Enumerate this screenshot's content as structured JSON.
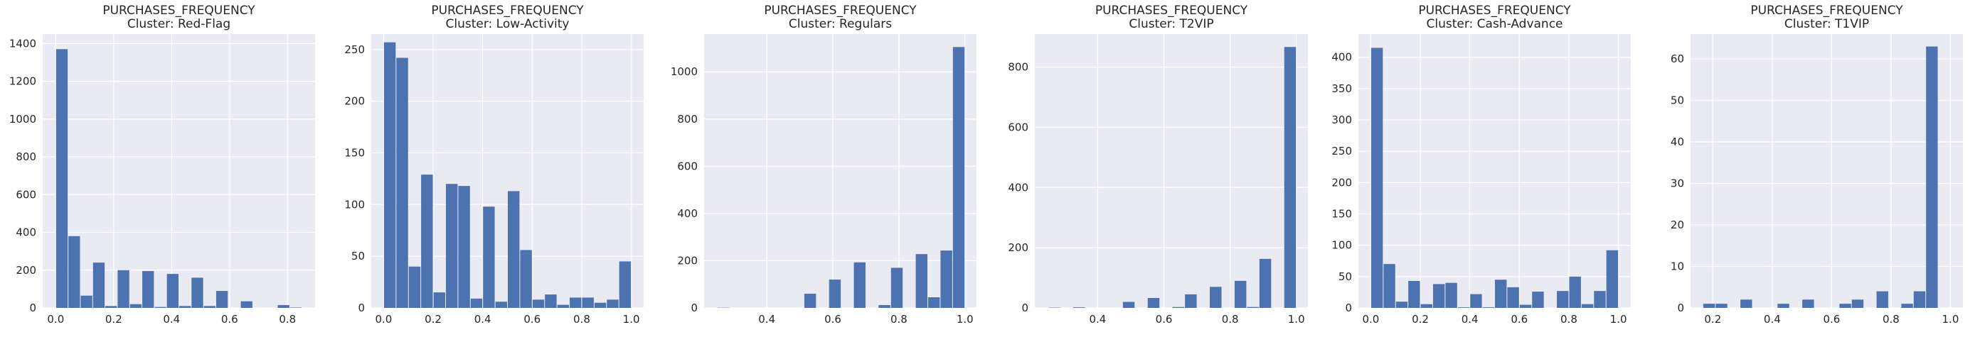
{
  "chart_data": [
    {
      "type": "bar",
      "title": "PURCHASES_FREQUENCY",
      "subtitle": "Cluster: Red-Flag",
      "bar_color": "#4c72b0",
      "xlim": [
        -0.045,
        0.895
      ],
      "ylim": [
        0,
        1450
      ],
      "xticks": [
        0.0,
        0.2,
        0.4,
        0.6,
        0.8
      ],
      "xtick_labels": [
        "0.0",
        "0.2",
        "0.4",
        "0.6",
        "0.8"
      ],
      "yticks": [
        0,
        200,
        400,
        600,
        800,
        1000,
        1200,
        1400
      ],
      "ytick_labels": [
        "0",
        "200",
        "400",
        "600",
        "800",
        "1000",
        "1200",
        "1400"
      ],
      "bins": [
        {
          "x0": 0.0,
          "x1": 0.0425,
          "count": 1370
        },
        {
          "x0": 0.0425,
          "x1": 0.085,
          "count": 380
        },
        {
          "x0": 0.085,
          "x1": 0.1275,
          "count": 65
        },
        {
          "x0": 0.1275,
          "x1": 0.17,
          "count": 240
        },
        {
          "x0": 0.17,
          "x1": 0.2125,
          "count": 10
        },
        {
          "x0": 0.2125,
          "x1": 0.255,
          "count": 200
        },
        {
          "x0": 0.255,
          "x1": 0.2975,
          "count": 20
        },
        {
          "x0": 0.2975,
          "x1": 0.34,
          "count": 195
        },
        {
          "x0": 0.34,
          "x1": 0.3825,
          "count": 5
        },
        {
          "x0": 0.3825,
          "x1": 0.425,
          "count": 180
        },
        {
          "x0": 0.425,
          "x1": 0.4675,
          "count": 10
        },
        {
          "x0": 0.4675,
          "x1": 0.51,
          "count": 160
        },
        {
          "x0": 0.51,
          "x1": 0.5525,
          "count": 10
        },
        {
          "x0": 0.5525,
          "x1": 0.595,
          "count": 90
        },
        {
          "x0": 0.595,
          "x1": 0.6375,
          "count": 0
        },
        {
          "x0": 0.6375,
          "x1": 0.68,
          "count": 35
        },
        {
          "x0": 0.68,
          "x1": 0.7225,
          "count": 0
        },
        {
          "x0": 0.7225,
          "x1": 0.765,
          "count": 0
        },
        {
          "x0": 0.765,
          "x1": 0.8075,
          "count": 15
        },
        {
          "x0": 0.8075,
          "x1": 0.85,
          "count": 2
        }
      ]
    },
    {
      "type": "bar",
      "title": "PURCHASES_FREQUENCY",
      "subtitle": "Cluster: Low-Activity",
      "bar_color": "#4c72b0",
      "xlim": [
        -0.05,
        1.05
      ],
      "ylim": [
        0,
        265
      ],
      "xticks": [
        0.0,
        0.2,
        0.4,
        0.6,
        0.8,
        1.0
      ],
      "xtick_labels": [
        "0.0",
        "0.2",
        "0.4",
        "0.6",
        "0.8",
        "1.0"
      ],
      "yticks": [
        0,
        50,
        100,
        150,
        200,
        250
      ],
      "ytick_labels": [
        "0",
        "50",
        "100",
        "150",
        "200",
        "250"
      ],
      "bins": [
        {
          "x0": 0.0,
          "x1": 0.05,
          "count": 257
        },
        {
          "x0": 0.05,
          "x1": 0.1,
          "count": 242
        },
        {
          "x0": 0.1,
          "x1": 0.15,
          "count": 40
        },
        {
          "x0": 0.15,
          "x1": 0.2,
          "count": 129
        },
        {
          "x0": 0.2,
          "x1": 0.25,
          "count": 15
        },
        {
          "x0": 0.25,
          "x1": 0.3,
          "count": 120
        },
        {
          "x0": 0.3,
          "x1": 0.35,
          "count": 118
        },
        {
          "x0": 0.35,
          "x1": 0.4,
          "count": 9
        },
        {
          "x0": 0.4,
          "x1": 0.45,
          "count": 98
        },
        {
          "x0": 0.45,
          "x1": 0.5,
          "count": 6
        },
        {
          "x0": 0.5,
          "x1": 0.55,
          "count": 113
        },
        {
          "x0": 0.55,
          "x1": 0.6,
          "count": 56
        },
        {
          "x0": 0.6,
          "x1": 0.65,
          "count": 8
        },
        {
          "x0": 0.65,
          "x1": 0.7,
          "count": 13
        },
        {
          "x0": 0.7,
          "x1": 0.75,
          "count": 3
        },
        {
          "x0": 0.75,
          "x1": 0.8,
          "count": 10
        },
        {
          "x0": 0.8,
          "x1": 0.85,
          "count": 10
        },
        {
          "x0": 0.85,
          "x1": 0.9,
          "count": 5
        },
        {
          "x0": 0.9,
          "x1": 0.95,
          "count": 8
        },
        {
          "x0": 0.95,
          "x1": 1.0,
          "count": 45
        }
      ]
    },
    {
      "type": "bar",
      "title": "PURCHASES_FREQUENCY",
      "subtitle": "Cluster: Regulars",
      "bar_color": "#4c72b0",
      "xlim": [
        0.21,
        1.035
      ],
      "ylim": [
        0,
        1160
      ],
      "xticks": [
        0.4,
        0.6,
        0.8,
        1.0
      ],
      "xtick_labels": [
        "0.4",
        "0.6",
        "0.8",
        "1.0"
      ],
      "yticks": [
        0,
        200,
        400,
        600,
        800,
        1000
      ],
      "ytick_labels": [
        "0",
        "200",
        "400",
        "600",
        "800",
        "1000"
      ],
      "bins": [
        {
          "x0": 0.25,
          "x1": 0.2875,
          "count": 1
        },
        {
          "x0": 0.2875,
          "x1": 0.325,
          "count": 0
        },
        {
          "x0": 0.325,
          "x1": 0.3625,
          "count": 0
        },
        {
          "x0": 0.3625,
          "x1": 0.4,
          "count": 0
        },
        {
          "x0": 0.4,
          "x1": 0.4375,
          "count": 0
        },
        {
          "x0": 0.4375,
          "x1": 0.475,
          "count": 0
        },
        {
          "x0": 0.475,
          "x1": 0.5125,
          "count": 0
        },
        {
          "x0": 0.5125,
          "x1": 0.55,
          "count": 60
        },
        {
          "x0": 0.55,
          "x1": 0.5875,
          "count": 0
        },
        {
          "x0": 0.5875,
          "x1": 0.625,
          "count": 120
        },
        {
          "x0": 0.625,
          "x1": 0.6625,
          "count": 0
        },
        {
          "x0": 0.6625,
          "x1": 0.7,
          "count": 193
        },
        {
          "x0": 0.7,
          "x1": 0.7375,
          "count": 0
        },
        {
          "x0": 0.7375,
          "x1": 0.775,
          "count": 12
        },
        {
          "x0": 0.775,
          "x1": 0.8125,
          "count": 170
        },
        {
          "x0": 0.8125,
          "x1": 0.85,
          "count": 0
        },
        {
          "x0": 0.85,
          "x1": 0.8875,
          "count": 228
        },
        {
          "x0": 0.8875,
          "x1": 0.925,
          "count": 45
        },
        {
          "x0": 0.925,
          "x1": 0.9625,
          "count": 243
        },
        {
          "x0": 0.9625,
          "x1": 1.0,
          "count": 1105
        }
      ]
    },
    {
      "type": "bar",
      "title": "PURCHASES_FREQUENCY",
      "subtitle": "Cluster: T2VIP",
      "bar_color": "#4c72b0",
      "xlim": [
        0.21,
        1.035
      ],
      "ylim": [
        0,
        910
      ],
      "xticks": [
        0.4,
        0.6,
        0.8,
        1.0
      ],
      "xtick_labels": [
        "0.4",
        "0.6",
        "0.8",
        "1.0"
      ],
      "yticks": [
        0,
        200,
        400,
        600,
        800
      ],
      "ytick_labels": [
        "0",
        "200",
        "400",
        "600",
        "800"
      ],
      "bins": [
        {
          "x0": 0.25,
          "x1": 0.2875,
          "count": 1
        },
        {
          "x0": 0.2875,
          "x1": 0.325,
          "count": 0
        },
        {
          "x0": 0.325,
          "x1": 0.3625,
          "count": 2
        },
        {
          "x0": 0.3625,
          "x1": 0.4,
          "count": 0
        },
        {
          "x0": 0.4,
          "x1": 0.4375,
          "count": 0
        },
        {
          "x0": 0.4375,
          "x1": 0.475,
          "count": 0
        },
        {
          "x0": 0.475,
          "x1": 0.5125,
          "count": 20
        },
        {
          "x0": 0.5125,
          "x1": 0.55,
          "count": 0
        },
        {
          "x0": 0.55,
          "x1": 0.5875,
          "count": 33
        },
        {
          "x0": 0.5875,
          "x1": 0.625,
          "count": 0
        },
        {
          "x0": 0.625,
          "x1": 0.6625,
          "count": 3
        },
        {
          "x0": 0.6625,
          "x1": 0.7,
          "count": 45
        },
        {
          "x0": 0.7,
          "x1": 0.7375,
          "count": 0
        },
        {
          "x0": 0.7375,
          "x1": 0.775,
          "count": 70
        },
        {
          "x0": 0.775,
          "x1": 0.8125,
          "count": 0
        },
        {
          "x0": 0.8125,
          "x1": 0.85,
          "count": 90
        },
        {
          "x0": 0.85,
          "x1": 0.8875,
          "count": 3
        },
        {
          "x0": 0.8875,
          "x1": 0.925,
          "count": 163
        },
        {
          "x0": 0.925,
          "x1": 0.9625,
          "count": 0
        },
        {
          "x0": 0.9625,
          "x1": 1.0,
          "count": 867
        }
      ]
    },
    {
      "type": "bar",
      "title": "PURCHASES_FREQUENCY",
      "subtitle": "Cluster: Cash-Advance",
      "bar_color": "#4c72b0",
      "xlim": [
        -0.05,
        1.05
      ],
      "ylim": [
        0,
        437
      ],
      "xticks": [
        0.0,
        0.2,
        0.4,
        0.6,
        0.8,
        1.0
      ],
      "xtick_labels": [
        "0.0",
        "0.2",
        "0.4",
        "0.6",
        "0.8",
        "1.0"
      ],
      "yticks": [
        0,
        50,
        100,
        150,
        200,
        250,
        300,
        350,
        400
      ],
      "ytick_labels": [
        "0",
        "50",
        "100",
        "150",
        "200",
        "250",
        "300",
        "350",
        "400"
      ],
      "bins": [
        {
          "x0": 0.0,
          "x1": 0.05,
          "count": 415
        },
        {
          "x0": 0.05,
          "x1": 0.1,
          "count": 70
        },
        {
          "x0": 0.1,
          "x1": 0.15,
          "count": 10
        },
        {
          "x0": 0.15,
          "x1": 0.2,
          "count": 43
        },
        {
          "x0": 0.2,
          "x1": 0.25,
          "count": 6
        },
        {
          "x0": 0.25,
          "x1": 0.3,
          "count": 38
        },
        {
          "x0": 0.3,
          "x1": 0.35,
          "count": 40
        },
        {
          "x0": 0.35,
          "x1": 0.4,
          "count": 1
        },
        {
          "x0": 0.4,
          "x1": 0.45,
          "count": 22
        },
        {
          "x0": 0.45,
          "x1": 0.5,
          "count": 1
        },
        {
          "x0": 0.5,
          "x1": 0.55,
          "count": 45
        },
        {
          "x0": 0.55,
          "x1": 0.6,
          "count": 33
        },
        {
          "x0": 0.6,
          "x1": 0.65,
          "count": 5
        },
        {
          "x0": 0.65,
          "x1": 0.7,
          "count": 26
        },
        {
          "x0": 0.7,
          "x1": 0.75,
          "count": 0
        },
        {
          "x0": 0.75,
          "x1": 0.8,
          "count": 27
        },
        {
          "x0": 0.8,
          "x1": 0.85,
          "count": 50
        },
        {
          "x0": 0.85,
          "x1": 0.9,
          "count": 6
        },
        {
          "x0": 0.9,
          "x1": 0.95,
          "count": 27
        },
        {
          "x0": 0.95,
          "x1": 1.0,
          "count": 92
        }
      ]
    },
    {
      "type": "bar",
      "title": "PURCHASES_FREQUENCY",
      "subtitle": "Cluster: T1VIP",
      "bar_color": "#4c72b0",
      "xlim": [
        0.125,
        1.042
      ],
      "ylim": [
        0,
        66
      ],
      "xticks": [
        0.2,
        0.4,
        0.6,
        0.8,
        1.0
      ],
      "xtick_labels": [
        "0.2",
        "0.4",
        "0.6",
        "0.8",
        "1.0"
      ],
      "yticks": [
        0,
        10,
        20,
        30,
        40,
        50,
        60
      ],
      "ytick_labels": [
        "0",
        "10",
        "20",
        "30",
        "40",
        "50",
        "60"
      ],
      "bins": [
        {
          "x0": 0.1667,
          "x1": 0.2083,
          "count": 1
        },
        {
          "x0": 0.2083,
          "x1": 0.25,
          "count": 1
        },
        {
          "x0": 0.25,
          "x1": 0.2917,
          "count": 0
        },
        {
          "x0": 0.2917,
          "x1": 0.3333,
          "count": 2
        },
        {
          "x0": 0.3333,
          "x1": 0.375,
          "count": 0
        },
        {
          "x0": 0.375,
          "x1": 0.4167,
          "count": 0
        },
        {
          "x0": 0.4167,
          "x1": 0.4583,
          "count": 1
        },
        {
          "x0": 0.4583,
          "x1": 0.5,
          "count": 0
        },
        {
          "x0": 0.5,
          "x1": 0.5417,
          "count": 2
        },
        {
          "x0": 0.5417,
          "x1": 0.5833,
          "count": 0
        },
        {
          "x0": 0.5833,
          "x1": 0.625,
          "count": 0
        },
        {
          "x0": 0.625,
          "x1": 0.6667,
          "count": 1
        },
        {
          "x0": 0.6667,
          "x1": 0.7083,
          "count": 2
        },
        {
          "x0": 0.7083,
          "x1": 0.75,
          "count": 0
        },
        {
          "x0": 0.75,
          "x1": 0.7917,
          "count": 4
        },
        {
          "x0": 0.7917,
          "x1": 0.8333,
          "count": 0
        },
        {
          "x0": 0.8333,
          "x1": 0.875,
          "count": 1
        },
        {
          "x0": 0.875,
          "x1": 0.9167,
          "count": 4
        },
        {
          "x0": 0.9167,
          "x1": 0.9583,
          "count": 63
        },
        {
          "x0": 0.9583,
          "x1": 1.0,
          "count": 0
        }
      ]
    }
  ]
}
